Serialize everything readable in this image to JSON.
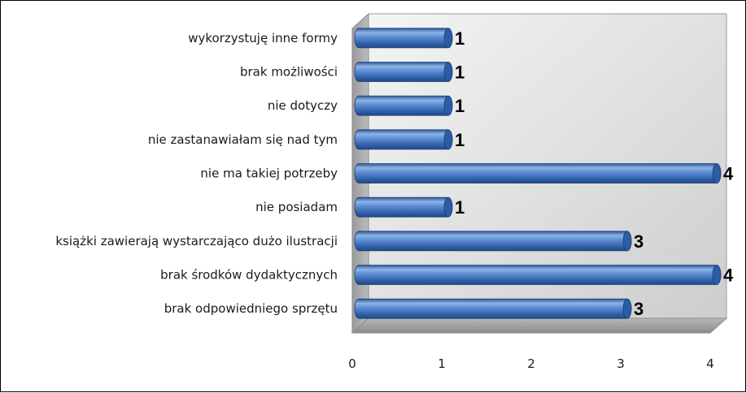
{
  "chart_data": {
    "type": "bar",
    "orientation": "horizontal",
    "categories": [
      "brak odpowiedniego sprzętu",
      "brak środków dydaktycznych",
      "książki zawierają wystarczająco dużo ilustracji",
      "nie posiadam",
      "nie ma takiej potrzeby",
      "nie zastanawiałam się nad tym",
      "nie dotyczy",
      "brak możliwości",
      "wykorzystuję inne formy"
    ],
    "values": [
      3,
      4,
      3,
      1,
      4,
      1,
      1,
      1,
      1
    ],
    "data_labels": [
      "3",
      "4",
      "3",
      "1",
      "4",
      "1",
      "1",
      "1",
      "1"
    ],
    "x_ticks": [
      "0",
      "1",
      "2",
      "3",
      "4"
    ],
    "xlim": [
      0,
      4
    ],
    "title": "",
    "xlabel": "",
    "ylabel": "",
    "grid": false,
    "legend": "none",
    "style": "3d-cylinder",
    "colors": {
      "bar_light": "#8fb3e3",
      "bar_mid": "#4a7cc7",
      "bar_dark": "#1f4a8a",
      "bar_cap": "#2c5ca5",
      "wall_light": "#f4f4f4",
      "wall_dark": "#cdcdcd"
    }
  }
}
